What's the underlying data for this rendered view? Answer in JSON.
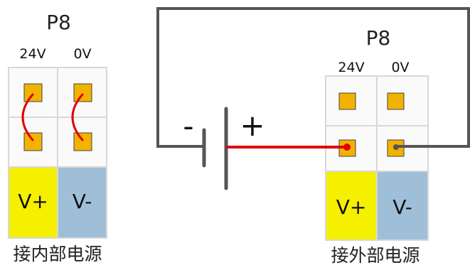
{
  "left_connector": {
    "title": "P8",
    "pin_24v": "24V",
    "pin_0v": "0V",
    "v_plus": "V+",
    "v_minus": "V-",
    "caption": "接内部电源"
  },
  "right_connector": {
    "title": "P8",
    "pin_24v": "24V",
    "pin_0v": "0V",
    "v_plus": "V+",
    "v_minus": "V-",
    "caption": "接外部电源"
  },
  "battery": {
    "minus_sign": "-",
    "plus_sign": "+"
  },
  "colors": {
    "pin_fill": "#f2b200",
    "v_plus_fill": "#f5ef00",
    "v_minus_fill": "#9fbfd9",
    "jumper_red": "#e00000",
    "wire_gray": "#555555",
    "cell_border": "#d8d8d8"
  }
}
